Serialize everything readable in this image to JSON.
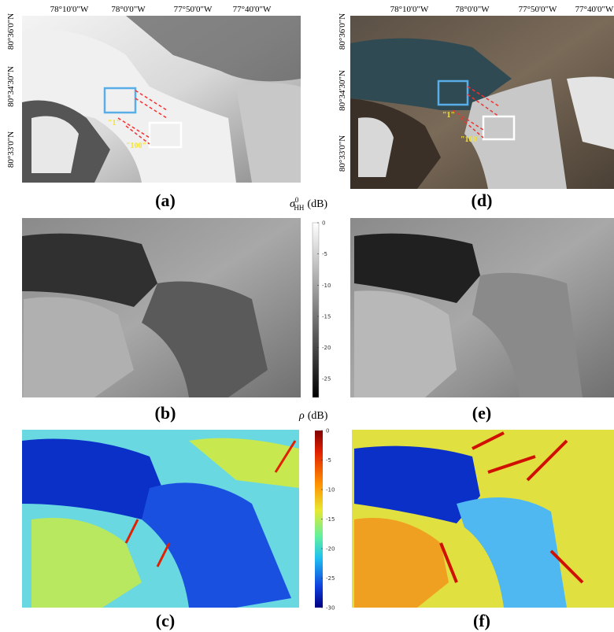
{
  "panels": [
    {
      "label": "(a)",
      "lon_ticks": [
        "78°10'0\"W",
        "78°0'0\"W",
        "77°50'0\"W",
        "77°40'0\"W"
      ],
      "lat_ticks": [
        "80°36'0\"N",
        "80°34'30\"N",
        "80°33'0\"N"
      ],
      "annotations": [
        "\"1\"",
        "\"100\""
      ]
    },
    {
      "label": "(b)"
    },
    {
      "label": "(c)"
    },
    {
      "label": "(d)",
      "lon_ticks": [
        "78°10'0\"W",
        "78°0'0\"W",
        "77°50'0\"W",
        "77°40'0\"W"
      ],
      "lat_ticks": [
        "80°36'0\"N",
        "80°34'30\"N",
        "80°33'0\"N"
      ],
      "annotations": [
        "\"1\"",
        "\"100\""
      ]
    },
    {
      "label": "(e)"
    },
    {
      "label": "(f)"
    }
  ],
  "colorbars": [
    {
      "symbol": "σ",
      "sup": "0",
      "sub": "HH",
      "unit": "(dB)",
      "range": [
        -28,
        0
      ],
      "ticks": [
        0,
        -5,
        -10,
        -15,
        -20,
        -25
      ]
    },
    {
      "symbol": "ρ",
      "unit": "(dB)",
      "range": [
        -30,
        0
      ],
      "ticks": [
        0,
        -5,
        -10,
        -15,
        -20,
        -25,
        -30
      ]
    }
  ]
}
